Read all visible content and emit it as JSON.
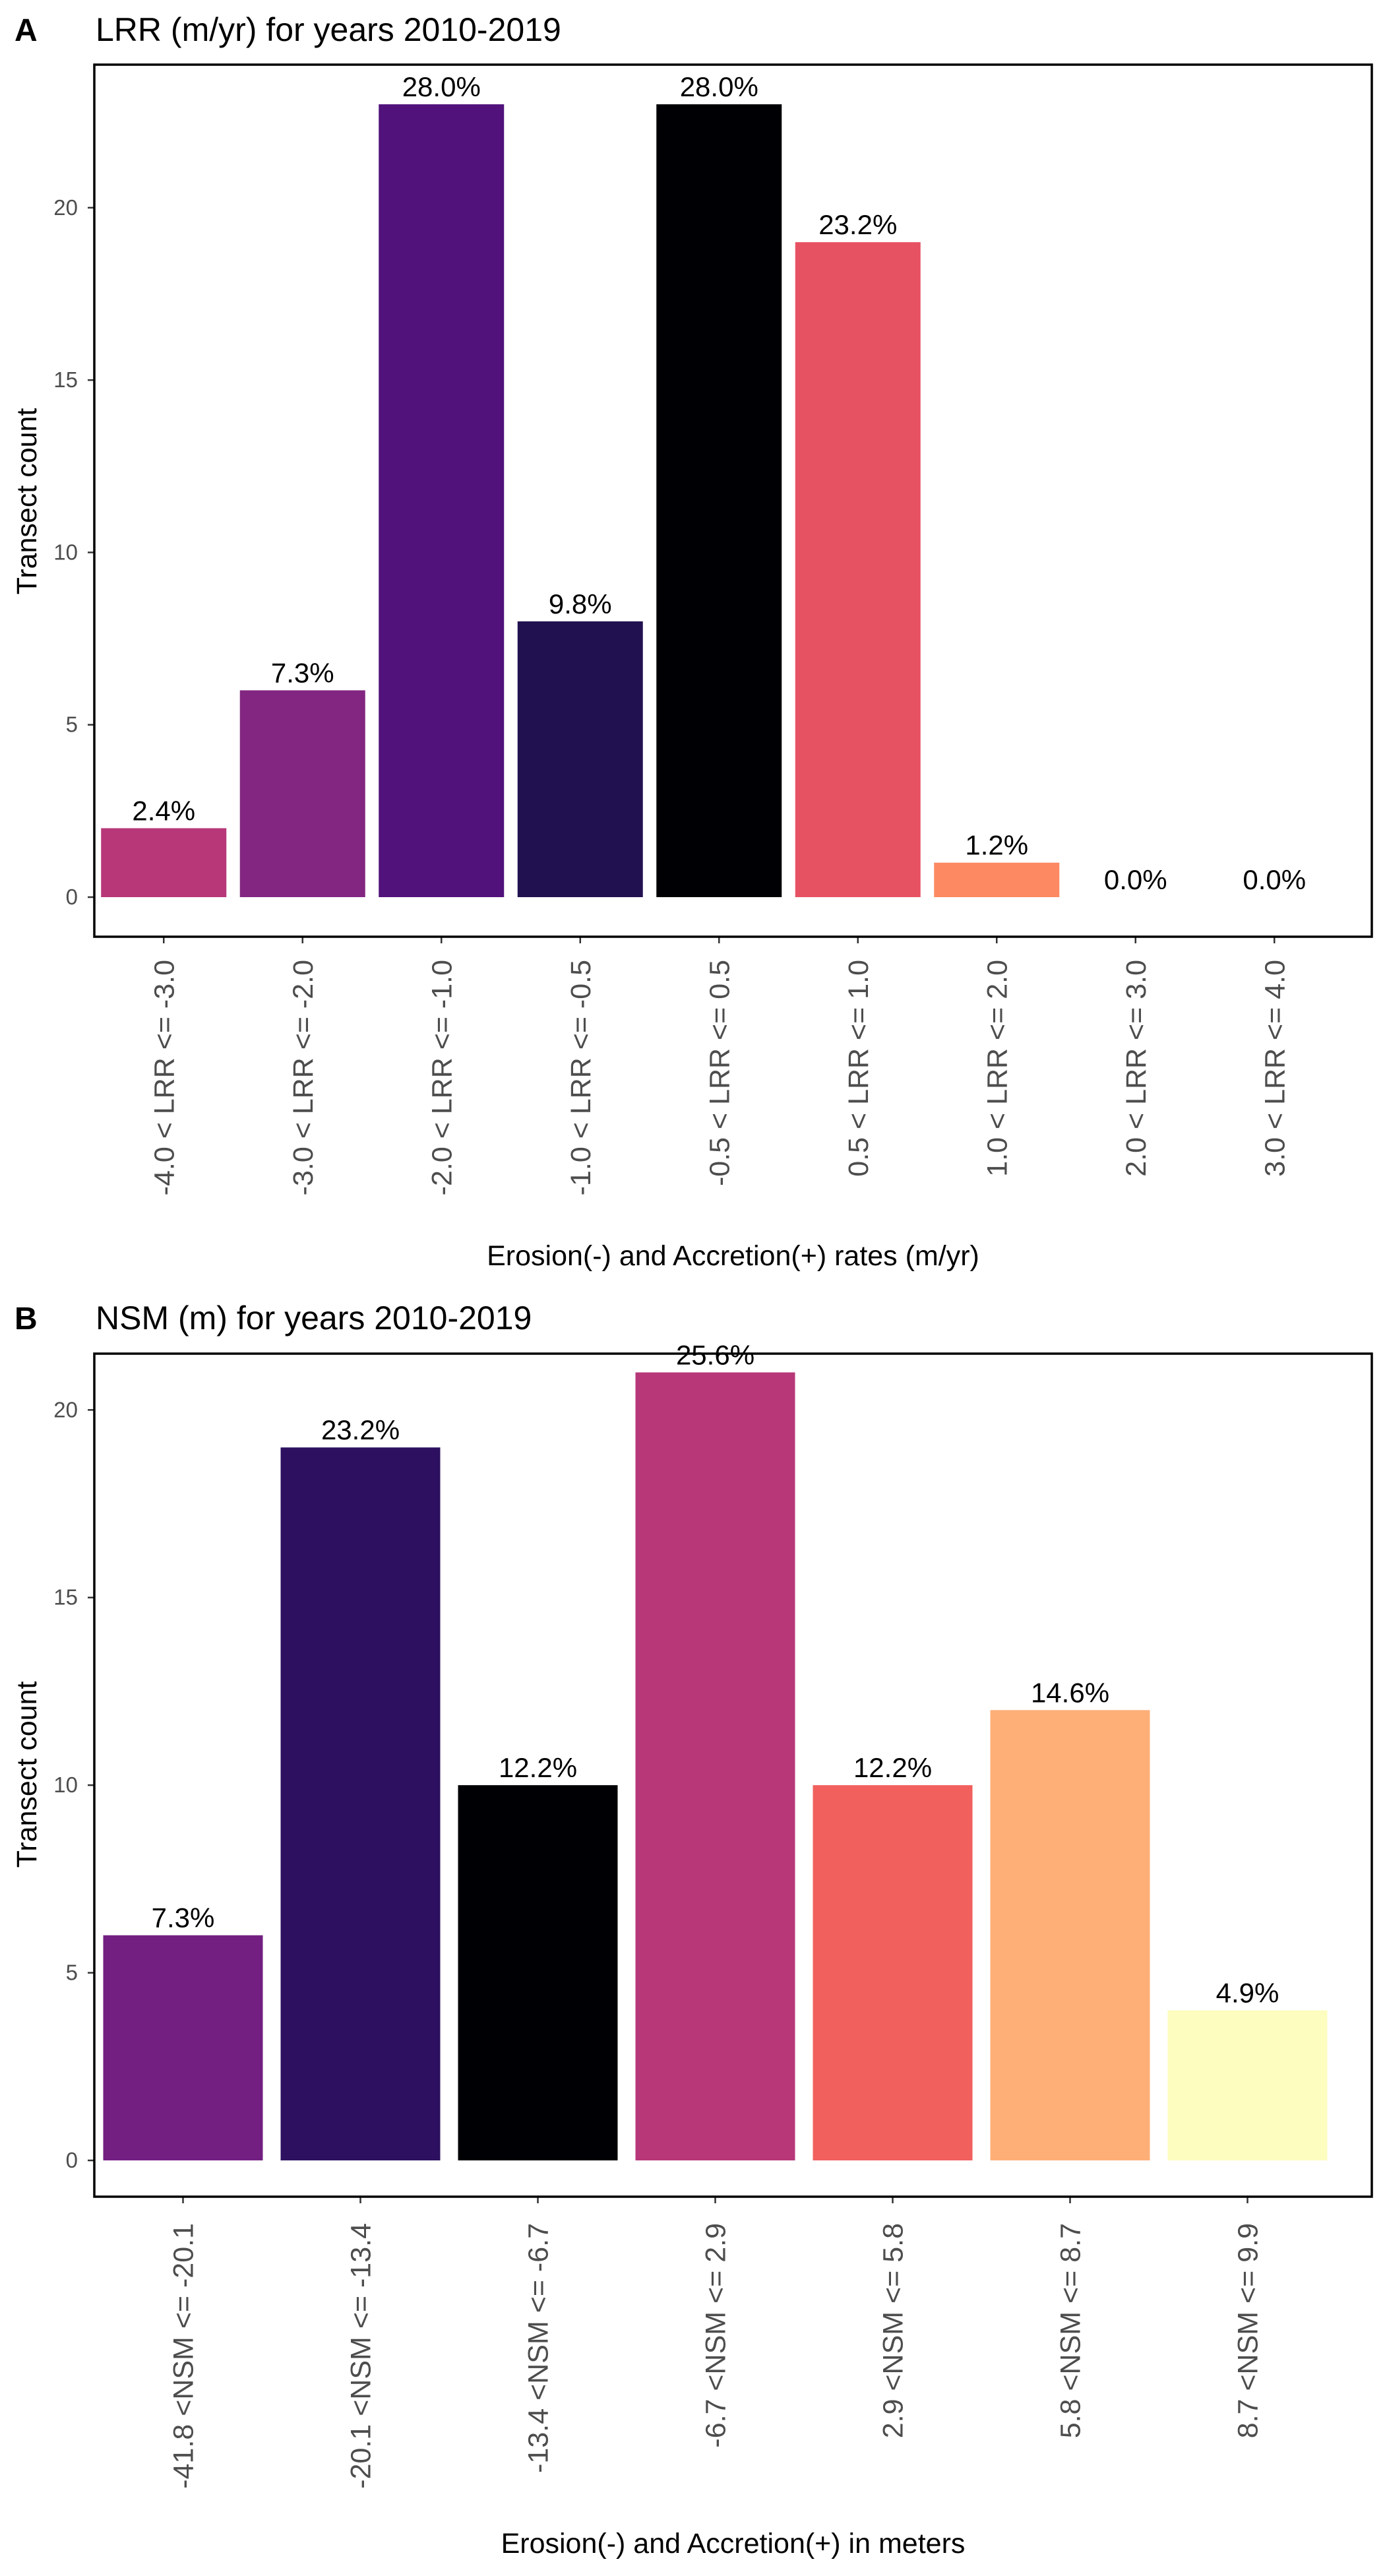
{
  "chart_data": [
    {
      "panel": "A",
      "type": "bar",
      "title": "LRR (m/yr) for years 2010-2019",
      "xlabel": "Erosion(-) and Accretion(+) rates (m/yr)",
      "ylabel": "Transect count",
      "ylim": [
        0,
        24.15
      ],
      "yticks": [
        0,
        5,
        10,
        15,
        20
      ],
      "grid": false,
      "legend": "none",
      "categories": [
        "-4.0 < LRR <= -3.0",
        "-3.0 < LRR <= -2.0",
        "-2.0 < LRR <= -1.0",
        "-1.0 < LRR <= -0.5",
        "-0.5 < LRR <= 0.5",
        "0.5 < LRR <= 1.0",
        "1.0 < LRR <= 2.0",
        "2.0 < LRR <= 3.0",
        "3.0 < LRR <= 4.0"
      ],
      "values": [
        2,
        6,
        23,
        8,
        23,
        19,
        1,
        0,
        0
      ],
      "labels": [
        "2.4%",
        "7.3%",
        "28.0%",
        "9.8%",
        "28.0%",
        "23.2%",
        "1.2%",
        "0.0%",
        "0.0%"
      ],
      "colors": [
        "#b73779",
        "#822681",
        "#51127c",
        "#221150",
        "#000004",
        "#e75263",
        "#fc8961",
        "#fec287",
        "#fcfdbf"
      ]
    },
    {
      "panel": "B",
      "type": "bar",
      "title": "NSM (m) for years 2010-2019",
      "xlabel": "Erosion(-) and Accretion(+) in meters",
      "ylabel": "Transect count",
      "ylim": [
        0,
        21.5
      ],
      "yticks": [
        0,
        5,
        10,
        15,
        20
      ],
      "grid": false,
      "legend": "none",
      "categories": [
        "-41.8 <NSM <= -20.1",
        "-20.1 <NSM <= -13.4",
        "-13.4 <NSM <= -6.7",
        "-6.7 <NSM <= 2.9",
        "2.9 <NSM <= 5.8",
        "5.8 <NSM <= 8.7",
        "8.7 <NSM <= 9.9"
      ],
      "values": [
        6,
        19,
        10,
        21,
        10,
        12,
        4
      ],
      "labels": [
        "7.3%",
        "23.2%",
        "12.2%",
        "25.6%",
        "12.2%",
        "14.6%",
        "4.9%"
      ],
      "colors": [
        "#721f81",
        "#2d1160",
        "#000004",
        "#b73779",
        "#f1605d",
        "#feaf77",
        "#fcfdbf"
      ]
    }
  ]
}
